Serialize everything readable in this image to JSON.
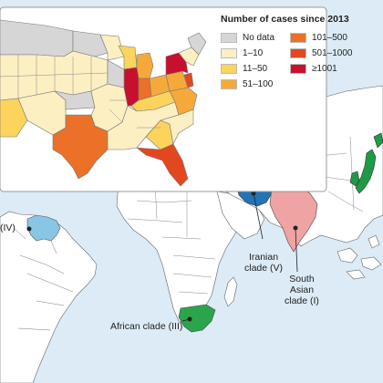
{
  "legend": {
    "title": "Number of cases since 2013",
    "items": [
      {
        "label": "No data",
        "color": "#d6d6d6"
      },
      {
        "label": "1–10",
        "color": "#fcefc2"
      },
      {
        "label": "11–50",
        "color": "#fcd45c"
      },
      {
        "label": "51–100",
        "color": "#f6a93b"
      },
      {
        "label": "101–500",
        "color": "#ea7127"
      },
      {
        "label": "501–1000",
        "color": "#e3471f"
      },
      {
        "label": "≥1001",
        "color": "#c8102e"
      }
    ]
  },
  "clades": [
    {
      "label": "(IV)",
      "color": "#88c6e4"
    },
    {
      "label": "Iranian\nclade (V)",
      "color": "#2274b5"
    },
    {
      "label": "South\nAsian\nclade (I)",
      "color": "#f0a3a3"
    },
    {
      "label": "African clade (III)",
      "color": "#2aa54b"
    },
    {
      "label": "",
      "color": "#1e9a46"
    }
  ]
}
